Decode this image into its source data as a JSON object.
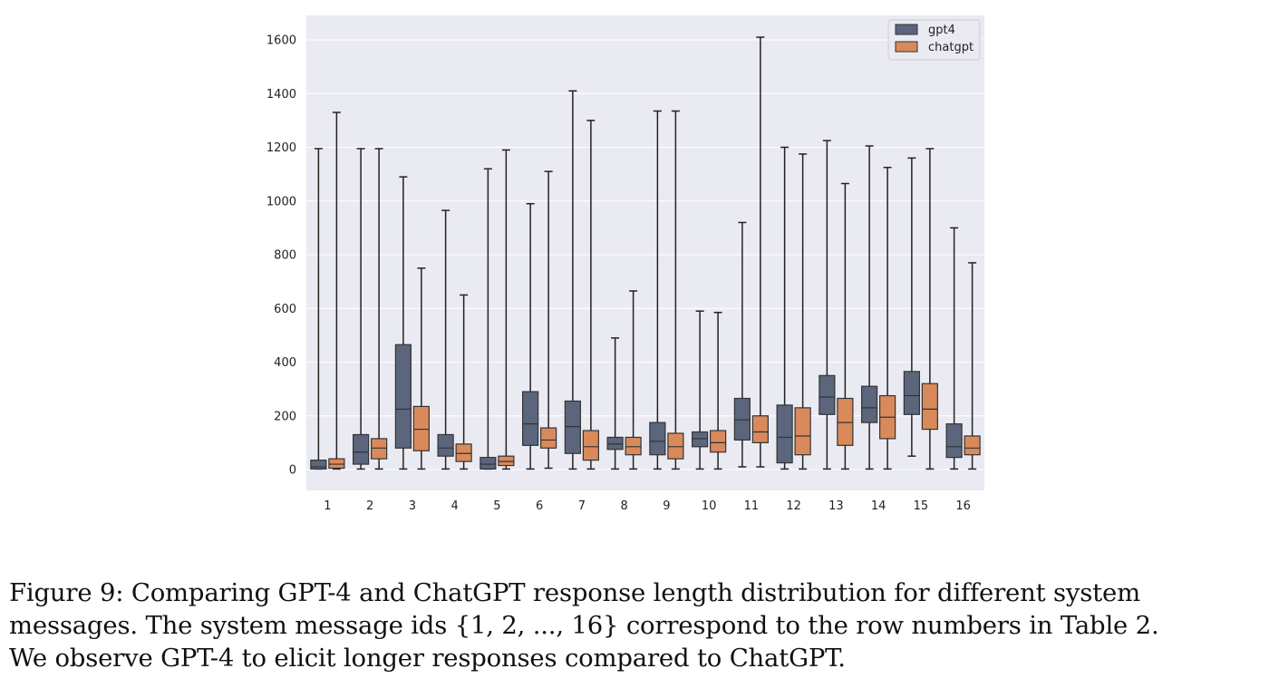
{
  "chart_data": {
    "type": "boxplot",
    "categories": [
      "1",
      "2",
      "3",
      "4",
      "5",
      "6",
      "7",
      "8",
      "9",
      "10",
      "11",
      "12",
      "13",
      "14",
      "15",
      "16"
    ],
    "ylim": [
      -75,
      1670
    ],
    "yticks": [
      0,
      200,
      400,
      600,
      800,
      1000,
      1200,
      1400,
      1600
    ],
    "grid": true,
    "legend_position": "top-right",
    "series": [
      {
        "name": "gpt4",
        "color": "#5b667d",
        "boxes": [
          {
            "min": 2,
            "q1": 2,
            "median": 10,
            "q3": 35,
            "max": 1195
          },
          {
            "min": 2,
            "q1": 20,
            "median": 65,
            "q3": 130,
            "max": 1195
          },
          {
            "min": 2,
            "q1": 80,
            "median": 225,
            "q3": 465,
            "max": 1090
          },
          {
            "min": 2,
            "q1": 50,
            "median": 80,
            "q3": 130,
            "max": 965
          },
          {
            "min": 2,
            "q1": 2,
            "median": 20,
            "q3": 45,
            "max": 1120
          },
          {
            "min": 2,
            "q1": 90,
            "median": 170,
            "q3": 290,
            "max": 990
          },
          {
            "min": 2,
            "q1": 60,
            "median": 160,
            "q3": 255,
            "max": 1410
          },
          {
            "min": 2,
            "q1": 75,
            "median": 95,
            "q3": 120,
            "max": 490
          },
          {
            "min": 2,
            "q1": 55,
            "median": 105,
            "q3": 175,
            "max": 1335
          },
          {
            "min": 2,
            "q1": 85,
            "median": 115,
            "q3": 140,
            "max": 590
          },
          {
            "min": 10,
            "q1": 110,
            "median": 185,
            "q3": 265,
            "max": 920
          },
          {
            "min": 2,
            "q1": 25,
            "median": 120,
            "q3": 240,
            "max": 1200
          },
          {
            "min": 2,
            "q1": 205,
            "median": 270,
            "q3": 350,
            "max": 1225
          },
          {
            "min": 2,
            "q1": 175,
            "median": 230,
            "q3": 310,
            "max": 1205
          },
          {
            "min": 50,
            "q1": 205,
            "median": 275,
            "q3": 365,
            "max": 1160
          },
          {
            "min": 2,
            "q1": 45,
            "median": 85,
            "q3": 170,
            "max": 900
          }
        ]
      },
      {
        "name": "chatgpt",
        "color": "#d98a5b",
        "boxes": [
          {
            "min": 2,
            "q1": 5,
            "median": 20,
            "q3": 40,
            "max": 1330
          },
          {
            "min": 2,
            "q1": 40,
            "median": 80,
            "q3": 115,
            "max": 1195
          },
          {
            "min": 2,
            "q1": 70,
            "median": 150,
            "q3": 235,
            "max": 750
          },
          {
            "min": 2,
            "q1": 30,
            "median": 60,
            "q3": 95,
            "max": 650
          },
          {
            "min": 2,
            "q1": 15,
            "median": 30,
            "q3": 50,
            "max": 1190
          },
          {
            "min": 5,
            "q1": 80,
            "median": 110,
            "q3": 155,
            "max": 1110
          },
          {
            "min": 2,
            "q1": 35,
            "median": 85,
            "q3": 145,
            "max": 1300
          },
          {
            "min": 2,
            "q1": 55,
            "median": 85,
            "q3": 120,
            "max": 665
          },
          {
            "min": 2,
            "q1": 40,
            "median": 85,
            "q3": 135,
            "max": 1335
          },
          {
            "min": 2,
            "q1": 65,
            "median": 100,
            "q3": 145,
            "max": 585
          },
          {
            "min": 10,
            "q1": 100,
            "median": 140,
            "q3": 200,
            "max": 1610
          },
          {
            "min": 2,
            "q1": 55,
            "median": 125,
            "q3": 230,
            "max": 1175
          },
          {
            "min": 2,
            "q1": 90,
            "median": 175,
            "q3": 265,
            "max": 1065
          },
          {
            "min": 2,
            "q1": 115,
            "median": 195,
            "q3": 275,
            "max": 1125
          },
          {
            "min": 2,
            "q1": 150,
            "median": 225,
            "q3": 320,
            "max": 1195
          },
          {
            "min": 2,
            "q1": 55,
            "median": 80,
            "q3": 125,
            "max": 770
          }
        ]
      }
    ]
  },
  "caption": {
    "line1": "Figure 9: Comparing GPT-4 and ChatGPT response length distribution for different system",
    "line2": "messages. The system message ids {1, 2, ..., 16} correspond to the row numbers in Table 2.",
    "line3": "We observe GPT-4 to elicit longer responses compared to ChatGPT."
  }
}
